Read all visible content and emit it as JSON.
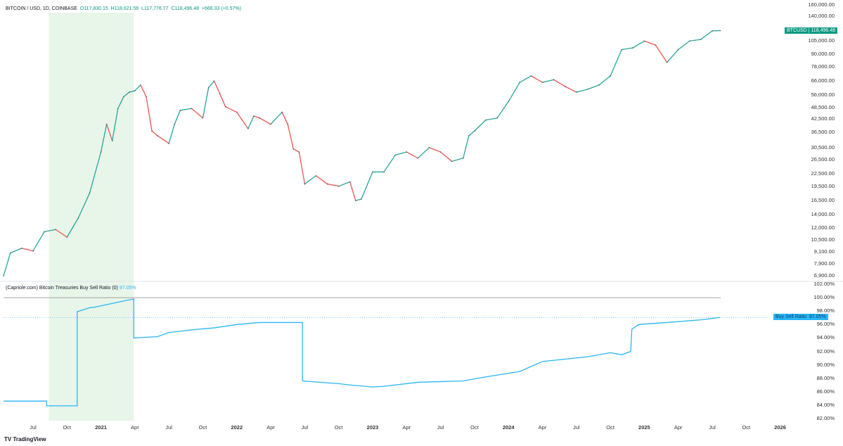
{
  "header": {
    "symbol": "BITCOIN / USD, 1D, COINBASE",
    "open": "O117,830.15",
    "high": "H118,621.56",
    "low": "L117,776.77",
    "close": "C118,496.48",
    "change": "+666.33 (+0.57%)"
  },
  "indicator": {
    "title": "(Capriole.com) Bitcoin Treasuries Buy Sell Ratio (0)",
    "value": "97.05%"
  },
  "price_tag": {
    "label": "BTCUSD",
    "value": "118,496.48"
  },
  "ratio_tag": {
    "label": "Buy Sell Ratio",
    "value": "97.05%"
  },
  "brand": "TradingView",
  "colors": {
    "up": "#26a69a",
    "down": "#ef5350",
    "ratio": "#29b6f6",
    "shade": "#e8f5e9"
  },
  "chart_data": [
    {
      "type": "line",
      "title": "BITCOIN / USD, 1D, COINBASE",
      "yscale": "log",
      "ylim": [
        6900,
        160000
      ],
      "yticks": [
        "160,000.00",
        "140,000.00",
        "105,000.00",
        "90,000.00",
        "78,000.00",
        "66,000.00",
        "56,000.00",
        "48,500.00",
        "42,500.00",
        "36,500.00",
        "30,500.00",
        "26,500.00",
        "22,500.00",
        "19,500.00",
        "16,500.00",
        "14,000.00",
        "12,000.00",
        "10,500.00",
        "9,100.00",
        "7,900.00",
        "6,900.00"
      ],
      "xticks": [
        "Jul",
        "Oct",
        "2021",
        "Apr",
        "Jul",
        "Oct",
        "2022",
        "Apr",
        "Jul",
        "Oct",
        "2023",
        "Apr",
        "Jul",
        "Oct",
        "2024",
        "Apr",
        "Jul",
        "Oct",
        "2025",
        "Apr",
        "Jul",
        "Oct",
        "2026"
      ],
      "x_unit": "months since Jul 2020",
      "shaded_range": [
        1.4,
        8.9
      ],
      "x": [
        -2.6,
        -2,
        -1,
        0,
        1,
        2,
        3,
        4,
        5,
        6,
        6.5,
        7,
        7.5,
        8,
        8.5,
        9,
        9.5,
        10,
        10.5,
        11,
        12,
        12.5,
        13,
        14,
        15,
        15.5,
        16,
        16.5,
        17,
        18,
        19,
        19.5,
        20,
        21,
        22,
        22.5,
        23,
        23.5,
        24,
        25,
        26,
        27,
        28,
        28.5,
        29,
        30,
        31,
        32,
        33,
        34,
        35,
        36,
        37,
        38,
        38.5,
        39,
        40,
        41,
        42,
        43,
        44,
        45,
        46,
        47,
        48,
        49,
        50,
        51,
        52,
        53,
        54,
        55,
        56,
        57,
        58,
        59,
        60,
        60.7
      ],
      "values": [
        6900,
        9000,
        9500,
        9200,
        11500,
        11800,
        10800,
        13500,
        18000,
        29000,
        40000,
        33000,
        48000,
        55000,
        58000,
        59000,
        63000,
        55000,
        37000,
        35000,
        32000,
        40000,
        47000,
        48000,
        43000,
        61000,
        66000,
        57000,
        49000,
        46000,
        38000,
        44000,
        43000,
        40000,
        46000,
        40000,
        30000,
        29000,
        20000,
        22000,
        20000,
        19500,
        20500,
        16500,
        16800,
        23000,
        23000,
        28000,
        29000,
        27000,
        30500,
        29000,
        26000,
        27000,
        35000,
        37000,
        42000,
        43000,
        52000,
        65000,
        70000,
        65000,
        67000,
        62000,
        58000,
        60000,
        63000,
        70000,
        95000,
        97000,
        105000,
        100000,
        82000,
        95000,
        105000,
        107000,
        118000,
        118496
      ]
    },
    {
      "type": "line",
      "title": "Bitcoin Treasuries Buy Sell Ratio",
      "ylim": [
        82,
        102
      ],
      "yticks": [
        "102.00%",
        "100.00%",
        "98.00%",
        "96.00%",
        "94.00%",
        "92.00%",
        "90.00%",
        "88.00%",
        "86.00%",
        "84.00%",
        "82.00%"
      ],
      "x": [
        -2.6,
        1.2,
        1.2,
        3.9,
        3.9,
        5,
        5.5,
        8,
        8.9,
        8.9,
        11,
        12,
        14,
        16,
        18,
        20,
        23.8,
        23.8,
        27,
        28,
        30,
        31,
        34,
        38,
        40,
        43,
        45,
        49,
        51,
        52,
        52.8,
        52.9,
        53.5,
        56,
        59,
        60.7
      ],
      "values": [
        84.6,
        84.6,
        83.9,
        83.9,
        97.9,
        98.5,
        98.6,
        99.5,
        99.8,
        94.0,
        94.2,
        94.8,
        95.2,
        95.5,
        96.0,
        96.3,
        96.3,
        87.6,
        87.2,
        87.0,
        86.7,
        86.8,
        87.4,
        87.6,
        88.2,
        89.0,
        90.5,
        91.2,
        91.8,
        91.5,
        92.0,
        95.3,
        96.0,
        96.3,
        96.7,
        97.05
      ]
    }
  ]
}
